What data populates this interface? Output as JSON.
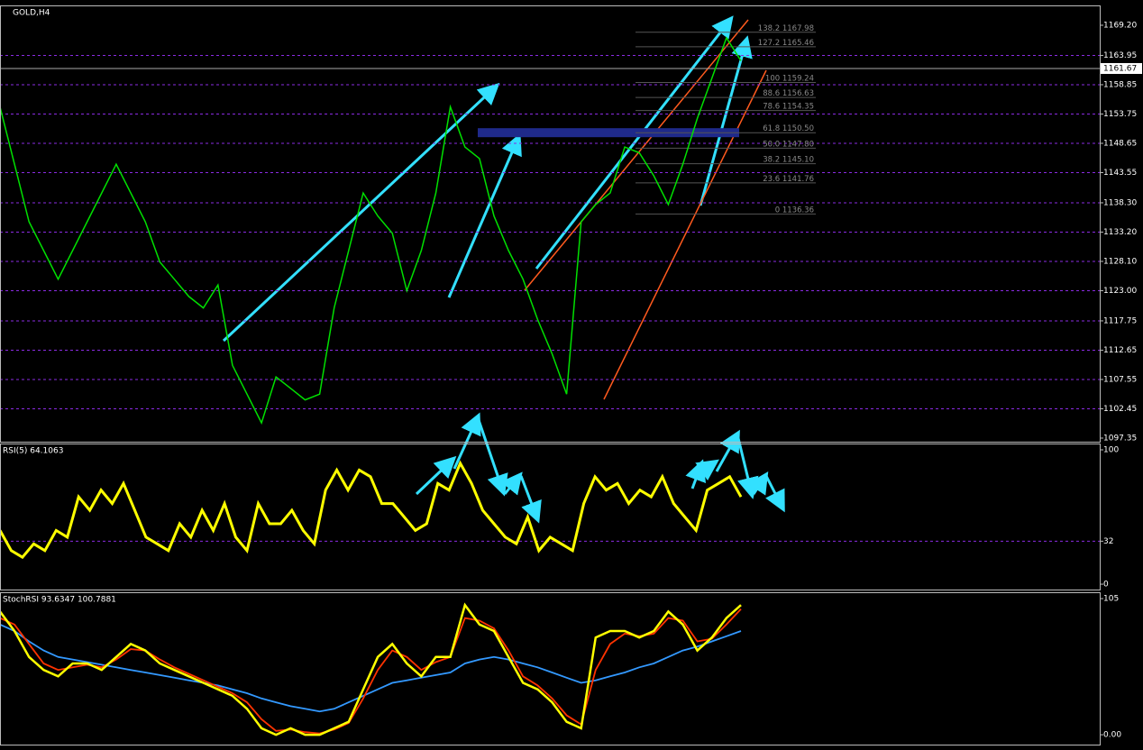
{
  "chart_data": [
    {
      "type": "line",
      "title": "GOLD,H4",
      "color": "#00e000",
      "values": [
        1155,
        1145,
        1135,
        1130,
        1125,
        1130,
        1135,
        1140,
        1145,
        1140,
        1135,
        1128,
        1125,
        1122,
        1120,
        1124,
        1110,
        1105,
        1100,
        1108,
        1106,
        1104,
        1105,
        1120,
        1130,
        1140,
        1136,
        1133,
        1123,
        1130,
        1140,
        1155,
        1148,
        1146,
        1136,
        1130,
        1125,
        1118,
        1112,
        1105,
        1135,
        1138,
        1140,
        1148,
        1147,
        1143,
        1138,
        1145,
        1153,
        1160,
        1167,
        1163
      ],
      "ylim": [
        1096.72,
        1172.65
      ],
      "yticks": [
        {
          "value": 1169.2,
          "label": "1169.20"
        },
        1163.95,
        1158.85,
        1153.75,
        1148.65,
        1143.55,
        {
          "value": 1138.3,
          "label": "1138.30"
        },
        {
          "value": 1133.2,
          "label": "1133.20"
        },
        {
          "value": 1128.1,
          "label": "1128.10"
        },
        {
          "value": 1123,
          "label": "1123.00"
        },
        1117.75,
        1112.65,
        1107.55,
        1102.45,
        1097.35
      ],
      "current_price": 1161.67,
      "fib": {
        "levels": [
          138.2,
          127.2,
          100,
          88.6,
          78.6,
          61.8,
          {
            "value": 50,
            "label": "50.0"
          },
          38.2,
          23.6,
          0
        ],
        "prices": [
          1167.98,
          1165.46,
          1159.24,
          1156.63,
          1154.35,
          {
            "value": 1150.5,
            "label": "1150.50"
          },
          {
            "value": 1147.8,
            "label": "1147.80"
          },
          {
            "value": 1145.1,
            "label": "1145.10"
          },
          1141.76,
          1136.36
        ]
      }
    },
    {
      "type": "line",
      "title": "RSI(5) 64.1063",
      "color": "#ffff00",
      "values": [
        40,
        25,
        20,
        30,
        25,
        40,
        35,
        65,
        55,
        70,
        60,
        75,
        55,
        35,
        30,
        25,
        45,
        35,
        55,
        40,
        60,
        35,
        25,
        60,
        45,
        45,
        55,
        40,
        30,
        70,
        85,
        70,
        85,
        80,
        60,
        60,
        50,
        40,
        45,
        75,
        70,
        90,
        75,
        55,
        45,
        35,
        30,
        50,
        25,
        35,
        30,
        25,
        60,
        80,
        70,
        75,
        60,
        70,
        65,
        80,
        60,
        50,
        40,
        70,
        75,
        80,
        65
      ],
      "ylim": [
        -4,
        104.7
      ],
      "yticks": [
        100,
        32,
        0
      ]
    },
    {
      "type": "line",
      "title": "StochRSI 93.6347 100.7881",
      "series": [
        {
          "color": "#3399ff",
          "values": [
            85,
            80,
            72,
            65,
            60,
            58,
            56,
            54,
            52,
            50,
            48,
            46,
            44,
            42,
            40,
            38,
            35,
            32,
            28,
            25,
            22,
            20,
            18,
            20,
            25,
            30,
            35,
            40,
            42,
            44,
            46,
            48,
            55,
            58,
            60,
            58,
            55,
            52,
            48,
            44,
            40,
            42,
            45,
            48,
            52,
            55,
            60,
            65,
            68,
            72,
            76,
            80
          ]
        },
        {
          "color": "#ff3300",
          "values": [
            90,
            85,
            70,
            55,
            50,
            52,
            54,
            52,
            58,
            66,
            65,
            58,
            52,
            47,
            42,
            37,
            32,
            25,
            12,
            3,
            4,
            2,
            1,
            4,
            9,
            28,
            50,
            65,
            60,
            50,
            56,
            60,
            90,
            88,
            82,
            65,
            45,
            38,
            28,
            15,
            8,
            50,
            70,
            78,
            76,
            78,
            90,
            88,
            72,
            74,
            85,
            97
          ]
        },
        {
          "color": "#ffff00",
          "values": [
            95,
            80,
            60,
            50,
            45,
            55,
            55,
            50,
            60,
            70,
            65,
            55,
            50,
            45,
            40,
            35,
            30,
            20,
            5,
            0,
            5,
            0,
            0,
            5,
            10,
            35,
            60,
            70,
            55,
            45,
            60,
            60,
            100,
            85,
            80,
            60,
            40,
            35,
            25,
            10,
            5,
            75,
            80,
            80,
            75,
            80,
            95,
            85,
            65,
            75,
            90,
            100
          ]
        }
      ],
      "ylim": [
        -7.6,
        109.9
      ],
      "yticks": [
        105,
        {
          "value": 0,
          "label": "0.00"
        }
      ]
    }
  ]
}
